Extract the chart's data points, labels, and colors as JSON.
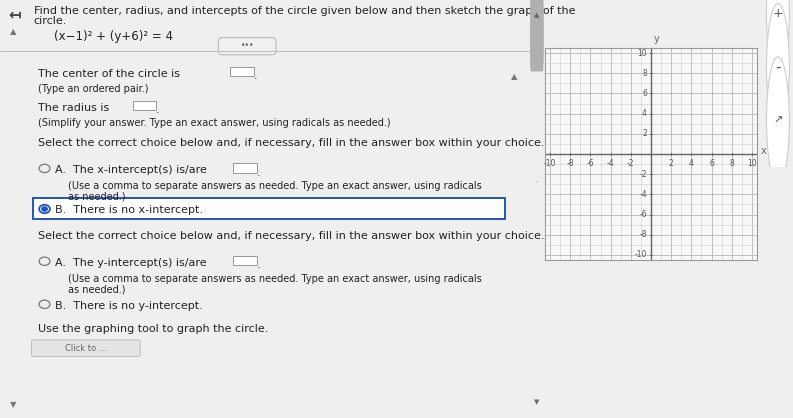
{
  "left_bg": "#efefef",
  "right_bg": "#d8d8d8",
  "graph_bg": "#f8f8f8",
  "graph_border": "#999999",
  "grid_color": "#cccccc",
  "axis_color": "#666666",
  "text_color": "#222222",
  "light_text": "#555555",
  "selected_border": "#2255bb",
  "unselected_circle_color": "#666666",
  "xlim": [
    -10.5,
    10.5
  ],
  "ylim": [
    -10.5,
    10.5
  ],
  "xtick_labels": [
    "-10",
    "-8",
    "-6",
    "-4",
    "-2",
    "2",
    "4",
    "6",
    "8",
    "10"
  ],
  "xtick_vals": [
    -10,
    -8,
    -6,
    -4,
    -2,
    2,
    4,
    6,
    8,
    10
  ],
  "ytick_labels": [
    "10",
    "8",
    "6",
    "4",
    "2",
    "-2",
    "-4",
    "-6",
    "-8",
    "-10"
  ],
  "ytick_vals": [
    10,
    8,
    6,
    4,
    2,
    -2,
    -4,
    -6,
    -8,
    -10
  ]
}
